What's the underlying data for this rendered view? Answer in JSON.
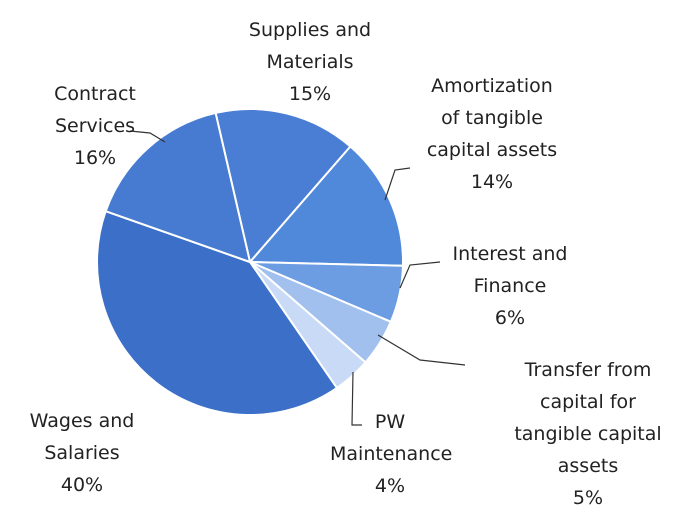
{
  "chart_data": {
    "type": "pie",
    "categories": [
      "Supplies and Materials",
      "Amortization of tangible capital assets",
      "Interest and Finance",
      "Transfer from capital for tangible capital assets",
      "PW Maintenance",
      "Wages and Salaries",
      "Contract Services"
    ],
    "values": [
      15,
      14,
      6,
      5,
      4,
      40,
      16
    ],
    "value_labels": [
      "15%",
      "14%",
      "6%",
      "5%",
      "4%",
      "40%",
      "16%"
    ],
    "colors": [
      "#4a7ed4",
      "#5088da",
      "#6c9ce2",
      "#a2c0ee",
      "#c8daf6",
      "#3b6fc8",
      "#467bd1"
    ]
  }
}
